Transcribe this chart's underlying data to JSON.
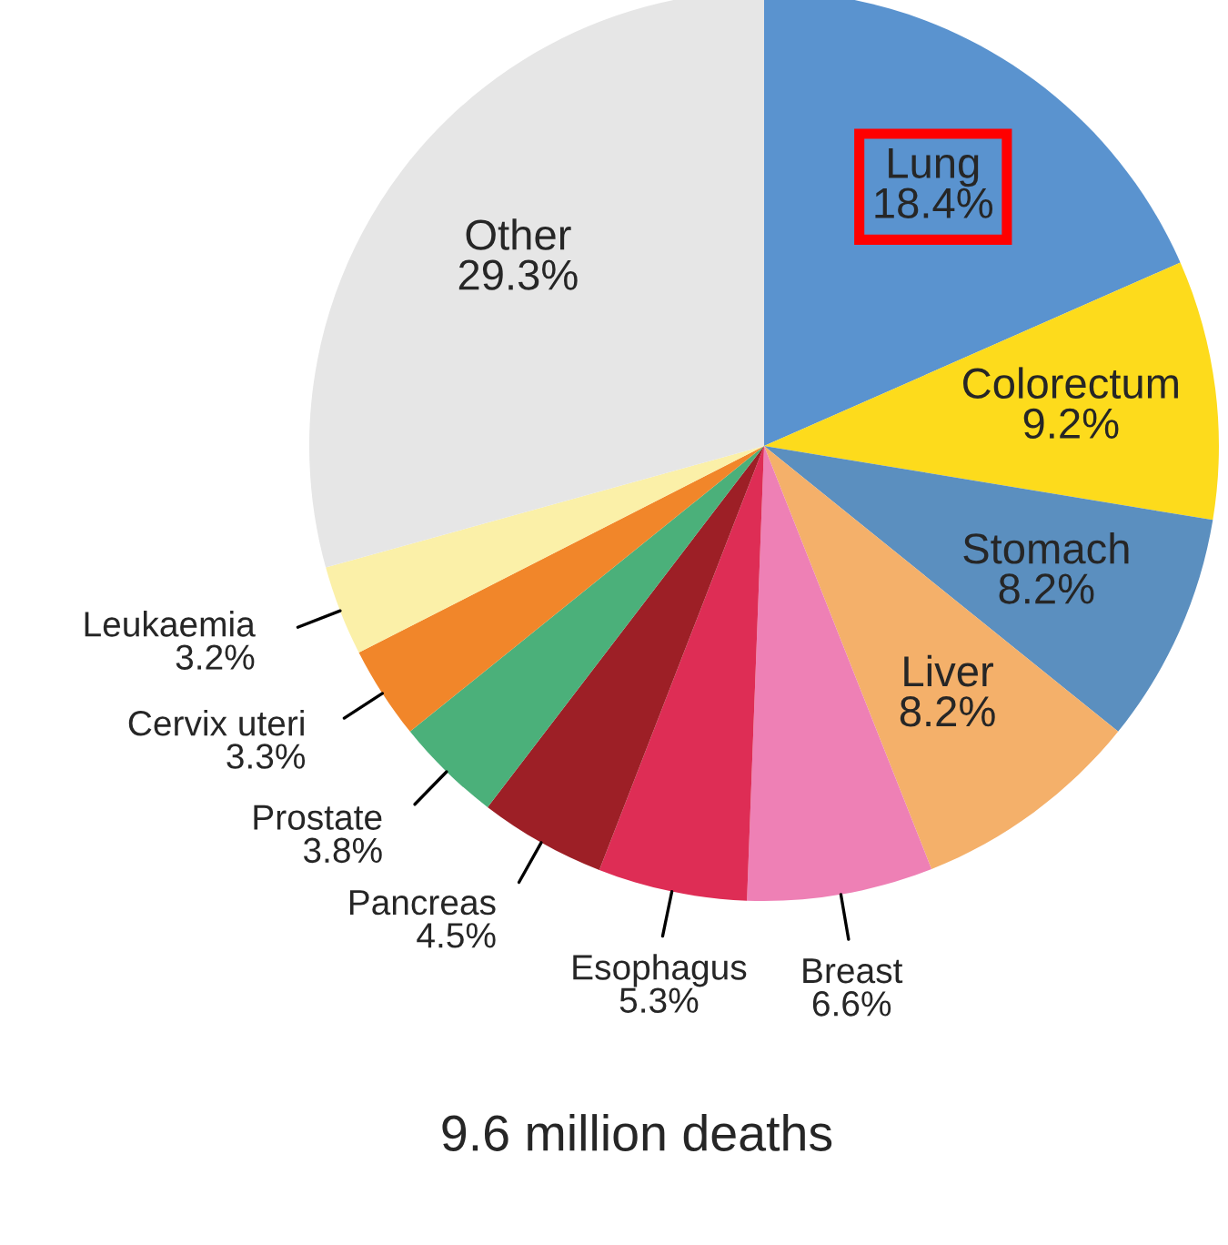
{
  "chart_data": {
    "type": "pie",
    "title": "9.6 million deaths",
    "categories": [
      "Lung",
      "Colorectum",
      "Stomach",
      "Liver",
      "Breast",
      "Esophagus",
      "Pancreas",
      "Prostate",
      "Cervix uteri",
      "Leukaemia",
      "Other"
    ],
    "values": [
      18.4,
      9.2,
      8.2,
      8.2,
      6.6,
      5.3,
      4.5,
      3.8,
      3.3,
      3.2,
      29.3
    ],
    "colors": [
      "#5a93cf",
      "#fddb1c",
      "#5b8fbf",
      "#f4b06a",
      "#ee80b5",
      "#de2d55",
      "#9d1f26",
      "#4bb07a",
      "#f1862a",
      "#fbf0a8",
      "#e6e6e6"
    ],
    "value_labels": [
      "18.4%",
      "9.2%",
      "8.2%",
      "8.2%",
      "6.6%",
      "5.3%",
      "4.5%",
      "3.8%",
      "3.3%",
      "3.2%",
      "29.3%"
    ]
  }
}
